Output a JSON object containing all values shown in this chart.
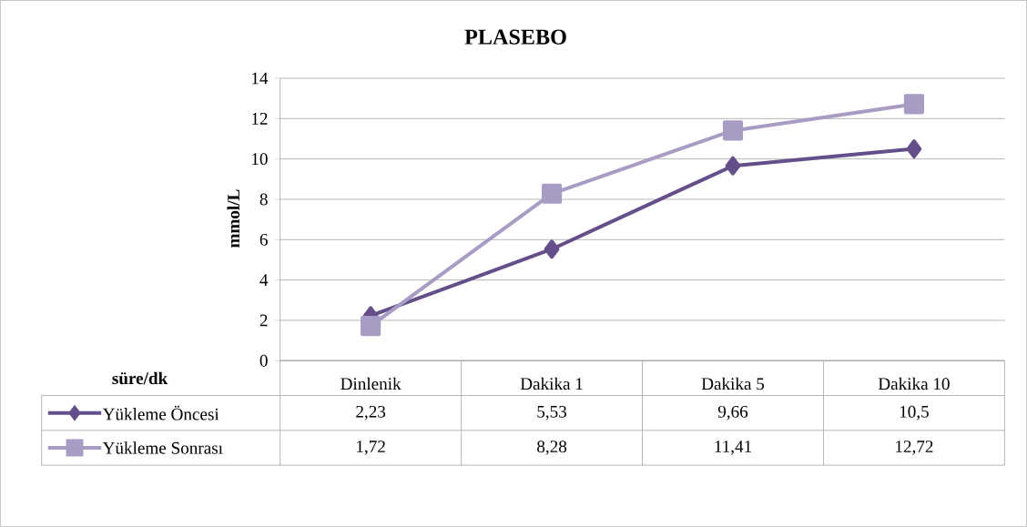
{
  "chart_data": {
    "type": "line",
    "title": "PLASEBO",
    "xlabel": "süre/dk",
    "ylabel": "mmol/L",
    "categories": [
      "Dinlenik",
      "Dakika 1",
      "Dakika 5",
      "Dakika 10"
    ],
    "series": [
      {
        "name": "Yükleme Öncesi",
        "color": "#654f8a",
        "marker": "diamond",
        "values": [
          2.23,
          5.53,
          9.66,
          10.5
        ],
        "value_labels": [
          "2,23",
          "5,53",
          "9,66",
          "10,5"
        ]
      },
      {
        "name": "Yükleme Sonrası",
        "color": "#a89cc4",
        "marker": "square",
        "values": [
          1.72,
          8.28,
          11.41,
          12.72
        ],
        "value_labels": [
          "1,72",
          "8,28",
          "11,41",
          "12,72"
        ]
      }
    ],
    "ylim": [
      0,
      14
    ],
    "yticks": [
      0,
      2,
      4,
      6,
      8,
      10,
      12,
      14
    ],
    "grid": "y",
    "legend": "bottom",
    "line_style": "solid"
  }
}
